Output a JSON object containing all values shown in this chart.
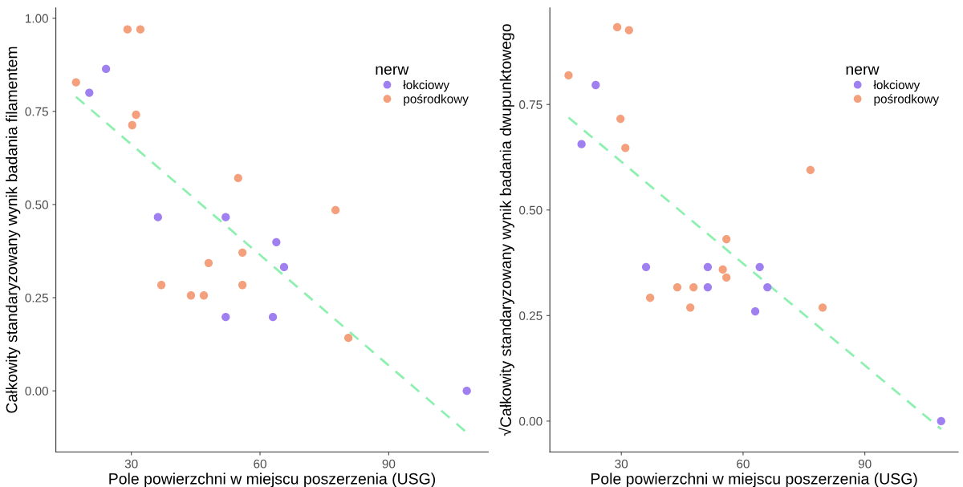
{
  "chart_data": [
    {
      "type": "scatter",
      "xlabel": "Pole powierzchni w miejscu poszerzenia (USG)",
      "ylabel": "Całkowity standaryzowany wynik badania filamentem",
      "legend_title": "nerw",
      "legend": "top right",
      "grid": false,
      "marker": "circle",
      "xlim": [
        12.4,
        113.2
      ],
      "ylim": [
        -0.164,
        1.028
      ],
      "xticks": [
        30,
        60,
        90
      ],
      "yticks": [
        {
          "value": 0,
          "label": "0.00"
        },
        {
          "value": 0.25,
          "label": "0.25"
        },
        {
          "value": 0.5,
          "label": "0.50"
        },
        {
          "value": 0.75,
          "label": "0.75"
        },
        {
          "value": 1,
          "label": "1.00"
        }
      ],
      "series": [
        {
          "name": "łokciowy",
          "color": "#a07ff0",
          "x": [
            20.2,
            24.1,
            36.2,
            52,
            52,
            63.8,
            65.6,
            63,
            108.2
          ],
          "values": [
            0.8,
            0.864,
            0.466,
            0.466,
            0.198,
            0.399,
            0.332,
            0.198,
            0
          ]
        },
        {
          "name": "pośrodkowy",
          "color": "#f4a07c",
          "x": [
            17.1,
            29.1,
            32.1,
            30.2,
            31.1,
            54.9,
            77.6,
            55.9,
            48,
            37,
            43.9,
            46.9,
            55.9,
            80.6
          ],
          "values": [
            0.828,
            0.97,
            0.97,
            0.713,
            0.741,
            0.571,
            0.485,
            0.371,
            0.343,
            0.284,
            0.256,
            0.256,
            0.284,
            0.142
          ]
        },
        {
          "type": "line",
          "color": "#8ef0b0",
          "line_style": "dashed",
          "marker": "none",
          "x": [
            17.1,
            108.2
          ],
          "values": [
            0.789,
            -0.112
          ]
        }
      ]
    },
    {
      "type": "scatter",
      "xlabel": "Pole powierzchni w miejscu poszerzenia (USG)",
      "ylabel": "√Całkowity standaryzowany wynik badania dwupunktowego",
      "legend_title": "nerw",
      "legend": "top right",
      "grid": false,
      "marker": "circle",
      "xlim": [
        12.4,
        113
      ],
      "ylim": [
        -0.073,
        0.979
      ],
      "xticks": [
        30,
        60,
        90
      ],
      "yticks": [
        {
          "value": 0,
          "label": "0.00"
        },
        {
          "value": 0.25,
          "label": "0.25"
        },
        {
          "value": 0.5,
          "label": "0.50"
        },
        {
          "value": 0.75,
          "label": "0.75"
        }
      ],
      "series": [
        {
          "name": "łokciowy",
          "color": "#a07ff0",
          "x": [
            20.2,
            23.7,
            36.1,
            51.3,
            51.3,
            64.1,
            66,
            63,
            108.8
          ],
          "values": [
            0.656,
            0.796,
            0.365,
            0.365,
            0.317,
            0.365,
            0.317,
            0.26,
            0
          ]
        },
        {
          "name": "pośrodkowy",
          "color": "#f4a07c",
          "x": [
            17,
            29,
            31.9,
            29.8,
            31,
            76.6,
            55.9,
            55,
            55.9,
            43.8,
            47.8,
            37.1,
            47,
            79.6
          ],
          "values": [
            0.819,
            0.933,
            0.926,
            0.716,
            0.647,
            0.595,
            0.431,
            0.359,
            0.34,
            0.317,
            0.317,
            0.292,
            0.269,
            0.269
          ]
        },
        {
          "type": "line",
          "color": "#8ef0b0",
          "line_style": "dashed",
          "marker": "none",
          "x": [
            17,
            108.8
          ],
          "values": [
            0.719,
            -0.019
          ]
        }
      ]
    }
  ]
}
